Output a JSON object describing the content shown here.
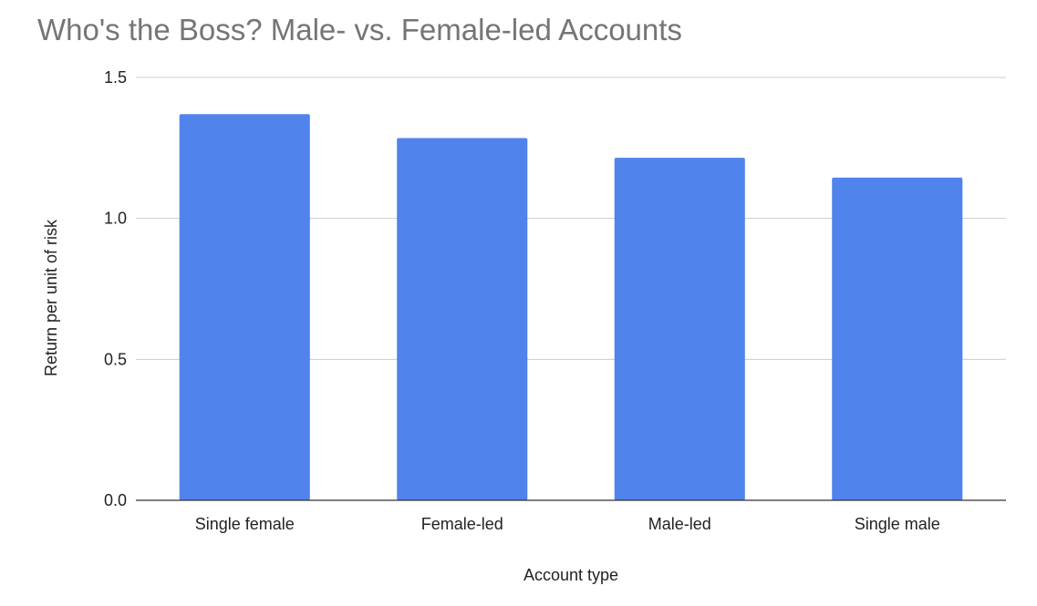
{
  "chart_data": {
    "type": "bar",
    "title": "Who's the Boss? Male- vs. Female-led Accounts",
    "xlabel": "Account type",
    "ylabel": "Return per unit of risk",
    "categories": [
      "Single female",
      "Female-led",
      "Male-led",
      "Single male"
    ],
    "series": [
      {
        "values": [
          1.37,
          1.285,
          1.215,
          1.145
        ]
      }
    ],
    "ylim": [
      0,
      1.5
    ],
    "yticks": [
      "0.0",
      "0.5",
      "1.0",
      "1.5"
    ],
    "grid": true,
    "legend": "none"
  },
  "colors": {
    "bar": "#5183ec",
    "title": "#757575",
    "text": "#222222",
    "gridline": "#cccccc",
    "axis": "#333333"
  }
}
